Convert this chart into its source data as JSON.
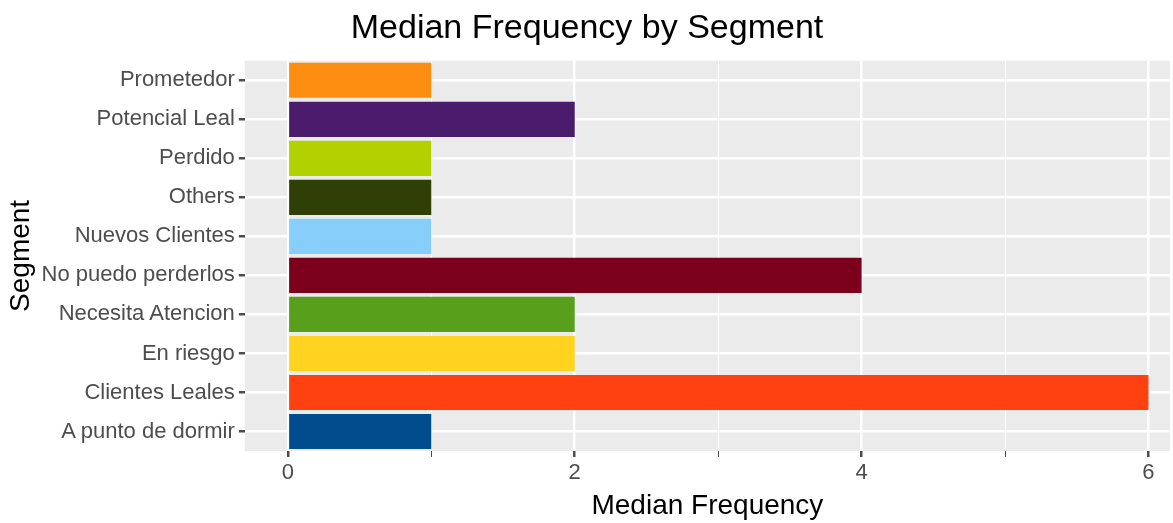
{
  "chart_data": {
    "type": "bar",
    "orientation": "horizontal",
    "title": "Median Frequency by Segment",
    "xlabel": "Median Frequency",
    "ylabel": "Segment",
    "categories": [
      "Prometedor",
      "Potencial Leal",
      "Perdido",
      "Others",
      "Nuevos Clientes",
      "No puedo perderlos",
      "Necesita Atencion",
      "En riesgo",
      "Clientes Leales",
      "A punto de dormir"
    ],
    "values": [
      1,
      2,
      1,
      1,
      1,
      4,
      2,
      2,
      6,
      1
    ],
    "colors": [
      "#fd8d10",
      "#4b1c6b",
      "#b2d100",
      "#2f3f06",
      "#87cefa",
      "#7b001c",
      "#58a01c",
      "#ffd320",
      "#ff4010",
      "#004c8c"
    ],
    "xlim": [
      -0.3,
      6.15
    ],
    "xticks": [
      0,
      {
        "value": 1,
        "label": null
      },
      2,
      {
        "value": 3,
        "label": null
      },
      4,
      {
        "value": 5,
        "label": null
      },
      6
    ],
    "grid": true,
    "legend": false
  }
}
